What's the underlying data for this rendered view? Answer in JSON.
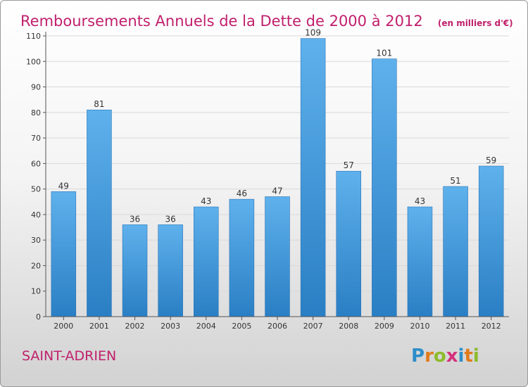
{
  "chart_data": {
    "type": "bar",
    "title": "Remboursements Annuels de la Dette de 2000 à 2012",
    "unit_note": "(en milliers d'€)",
    "categories": [
      "2000",
      "2001",
      "2002",
      "2003",
      "2004",
      "2005",
      "2006",
      "2007",
      "2008",
      "2009",
      "2010",
      "2011",
      "2012"
    ],
    "values": [
      49,
      81,
      36,
      36,
      43,
      46,
      47,
      109,
      57,
      101,
      43,
      51,
      59
    ],
    "ylim": [
      0,
      110
    ],
    "yticks": [
      0,
      10,
      20,
      30,
      40,
      50,
      60,
      70,
      80,
      90,
      100,
      110
    ],
    "grid": true,
    "bar_color": "#3a8fd6"
  },
  "location": "SAINT-ADRIEN",
  "brand": {
    "letters": [
      "P",
      "r",
      "o",
      "x",
      "i",
      "t",
      "i"
    ],
    "colors": [
      "#2d8ec9",
      "#e07b1a",
      "#8dbb2a",
      "#d4317a",
      "#2d8ec9",
      "#e07b1a",
      "#8dbb2a"
    ]
  }
}
